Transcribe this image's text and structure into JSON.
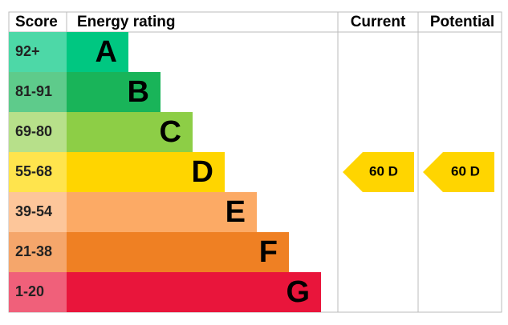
{
  "header": {
    "score": "Score",
    "rating": "Energy rating",
    "current": "Current",
    "potential": "Potential"
  },
  "bands": [
    {
      "score": "92+",
      "letter": "A"
    },
    {
      "score": "81-91",
      "letter": "B"
    },
    {
      "score": "69-80",
      "letter": "C"
    },
    {
      "score": "55-68",
      "letter": "D"
    },
    {
      "score": "39-54",
      "letter": "E"
    },
    {
      "score": "21-38",
      "letter": "F"
    },
    {
      "score": "1-20",
      "letter": "G"
    }
  ],
  "current": "60 D",
  "potential": "60 D"
}
